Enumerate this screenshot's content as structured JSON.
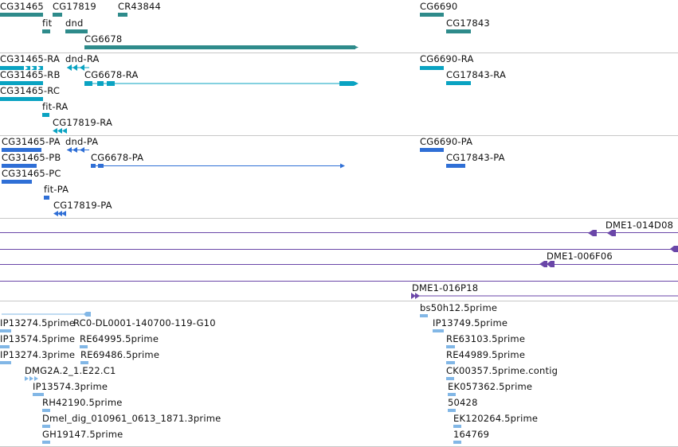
{
  "genes": [
    "CG31465",
    "CG17819",
    "CR43844",
    "CG6690",
    "fit",
    "dnd",
    "CG17843",
    "CG6678"
  ],
  "transcripts": [
    "CG31465-RA",
    "dnd-RA",
    "CG6690-RA",
    "CG31465-RB",
    "CG6678-RA",
    "CG17843-RA",
    "CG31465-RC",
    "fit-RA",
    "CG17819-RA"
  ],
  "proteins": [
    "CG31465-PA",
    "dnd-PA",
    "CG6690-PA",
    "CG31465-PB",
    "CG6678-PA",
    "CG17843-PA",
    "CG31465-PC",
    "fit-PA",
    "CG17819-PA"
  ],
  "clones": [
    "DME1-014D08",
    "DME1-006F06",
    "DME1-016P18"
  ],
  "ests": [
    "bs50h12.5prime",
    "IP13274.5prime",
    "RC0-DL0001-140700-119-G10",
    "IP13749.5prime",
    "IP13574.5prime",
    "RE64995.5prime",
    "RE63103.5prime",
    "IP13274.3prime",
    "RE69486.5prime",
    "RE44989.5prime",
    "DMG2A.2_1.E22.C1",
    "CK00357.5prime.contig",
    "IP13574.3prime",
    "EK057362.5prime",
    "RH42190.5prime",
    "50428",
    "Dmel_dig_010961_0613_1871.3prime",
    "EK120264.5prime",
    "GH19147.5prime",
    "164769"
  ],
  "colors": {
    "gene": "#2e8b8b",
    "transcript": "#0aa3c2",
    "protein": "#2f6fd6",
    "clone": "#6a46a8",
    "est": "#82b7e6"
  }
}
